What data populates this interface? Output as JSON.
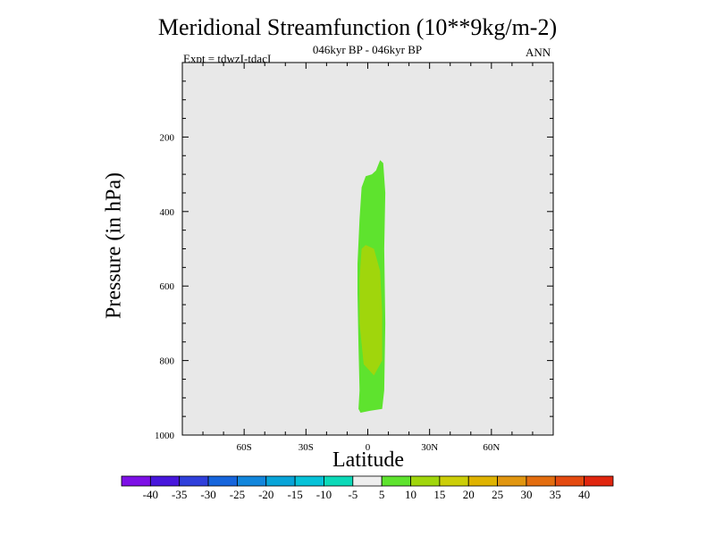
{
  "chart_data": {
    "type": "contour",
    "title": "Meridional Streamfunction (10**9kg/m-2)",
    "subtitle": "046kyr BP - 046kyr BP",
    "experiment_label": "Expt = tdwzI-tdacI",
    "season": "ANN",
    "xlabel": "Latitude",
    "ylabel": "Pressure (in hPa)",
    "xlim": [
      -90,
      90
    ],
    "ylim": [
      1000,
      0
    ],
    "y_reversed": true,
    "xticks": [
      {
        "v": -60,
        "label": "60S"
      },
      {
        "v": -30,
        "label": "30S"
      },
      {
        "v": 0,
        "label": "0"
      },
      {
        "v": 30,
        "label": "30N"
      },
      {
        "v": 60,
        "label": "60N"
      }
    ],
    "yticks": [
      {
        "v": 200,
        "label": "200"
      },
      {
        "v": 400,
        "label": "400"
      },
      {
        "v": 600,
        "label": "600"
      },
      {
        "v": 800,
        "label": "800"
      },
      {
        "v": 1000,
        "label": "1000"
      }
    ],
    "background_color": "#e8e8e8",
    "contours": [
      {
        "level": 5,
        "color": "#5ee32e",
        "points": [
          [
            -3.5,
            940
          ],
          [
            1,
            935
          ],
          [
            7,
            930
          ],
          [
            8,
            880
          ],
          [
            8.5,
            700
          ],
          [
            8,
            500
          ],
          [
            8.5,
            350
          ],
          [
            7.5,
            270
          ],
          [
            6,
            262
          ],
          [
            4,
            290
          ],
          [
            2,
            300
          ],
          [
            -1,
            305
          ],
          [
            -3,
            335
          ],
          [
            -4,
            420
          ],
          [
            -5,
            540
          ],
          [
            -5,
            620
          ],
          [
            -4.5,
            760
          ],
          [
            -4,
            880
          ],
          [
            -4.5,
            930
          ]
        ]
      },
      {
        "level": 10,
        "color": "#a0d60c",
        "points": [
          [
            -3,
            500
          ],
          [
            -1,
            490
          ],
          [
            3,
            500
          ],
          [
            6,
            560
          ],
          [
            7,
            670
          ],
          [
            7,
            800
          ],
          [
            3,
            840
          ],
          [
            -2,
            810
          ],
          [
            -4,
            700
          ],
          [
            -4,
            580
          ]
        ]
      }
    ],
    "colorbar": {
      "levels": [
        -40,
        -35,
        -30,
        -25,
        -20,
        -15,
        -10,
        -5,
        5,
        10,
        15,
        20,
        25,
        30,
        35,
        40
      ],
      "colors": [
        "#7d10e6",
        "#4716dc",
        "#2f3fdb",
        "#1665dc",
        "#1286dc",
        "#08a4d8",
        "#07c2d8",
        "#0cd9b8",
        "#eeeeee",
        "#5ee32e",
        "#a0d60c",
        "#ccce08",
        "#dfb300",
        "#e19610",
        "#e36d0f",
        "#e44a10",
        "#e0260f"
      ]
    }
  }
}
